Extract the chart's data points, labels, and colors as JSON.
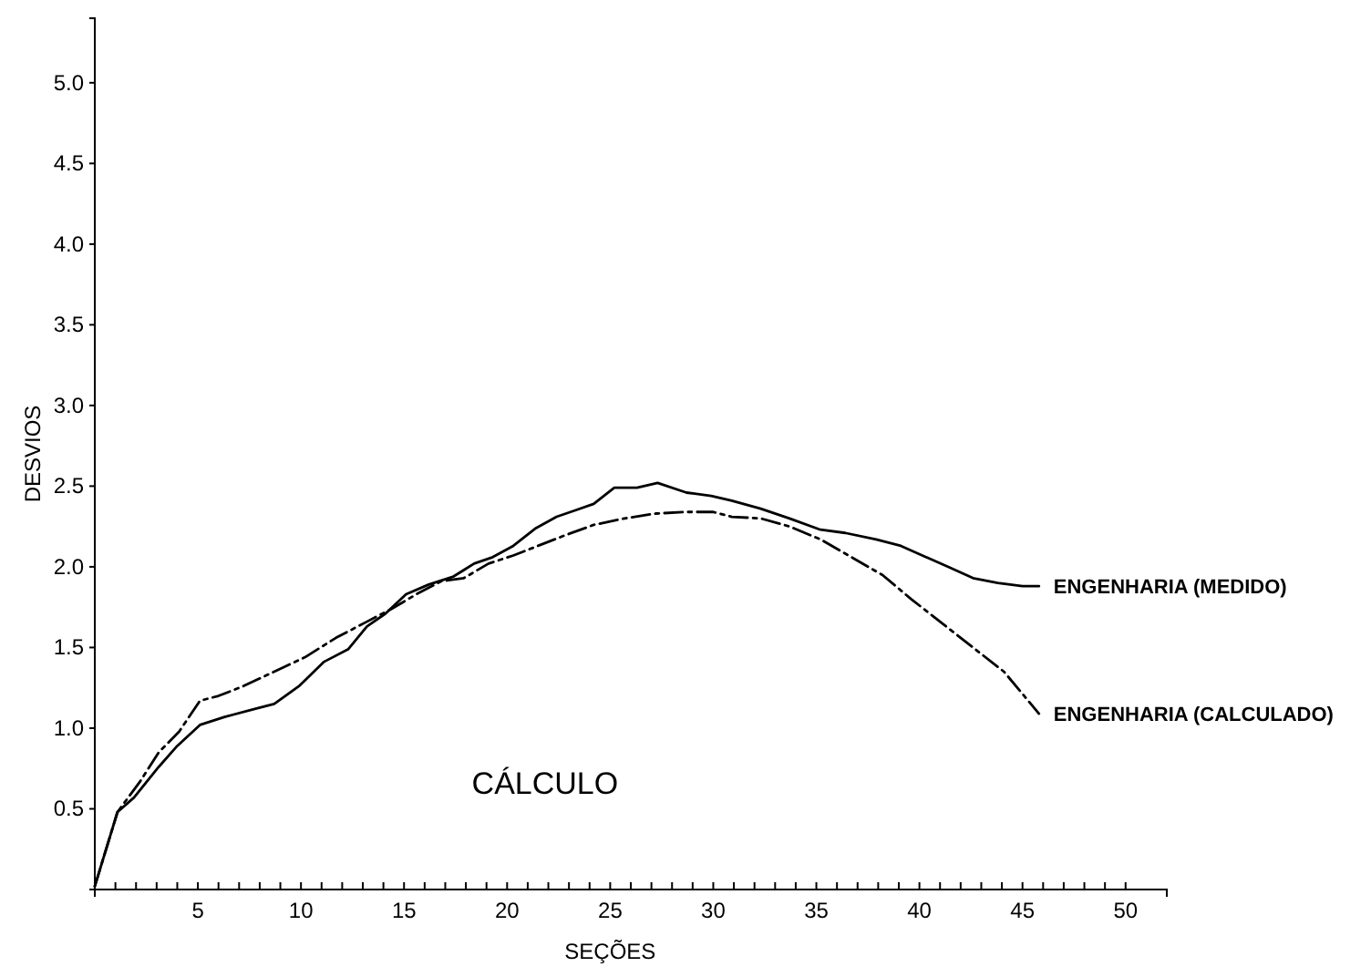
{
  "chart_data": {
    "type": "line",
    "xlabel": "SEÇÕES",
    "ylabel": "DESVIOS",
    "annotations": [
      "CÁLCULO"
    ],
    "xlim": [
      0,
      52
    ],
    "ylim": [
      0,
      5.4
    ],
    "xticks": [
      {
        "value": 1,
        "label": null
      },
      {
        "value": 2,
        "label": null
      },
      {
        "value": 3,
        "label": null
      },
      {
        "value": 4,
        "label": null
      },
      5,
      {
        "value": 6,
        "label": null
      },
      {
        "value": 7,
        "label": null
      },
      {
        "value": 8,
        "label": null
      },
      {
        "value": 9,
        "label": null
      },
      10,
      {
        "value": 11,
        "label": null
      },
      {
        "value": 12,
        "label": null
      },
      {
        "value": 13,
        "label": null
      },
      {
        "value": 14,
        "label": null
      },
      15,
      {
        "value": 16,
        "label": null
      },
      {
        "value": 17,
        "label": null
      },
      {
        "value": 18,
        "label": null
      },
      {
        "value": 19,
        "label": null
      },
      20,
      {
        "value": 21,
        "label": null
      },
      {
        "value": 22,
        "label": null
      },
      {
        "value": 23,
        "label": null
      },
      {
        "value": 24,
        "label": null
      },
      25,
      {
        "value": 26,
        "label": null
      },
      {
        "value": 27,
        "label": null
      },
      {
        "value": 28,
        "label": null
      },
      {
        "value": 29,
        "label": null
      },
      30,
      {
        "value": 31,
        "label": null
      },
      {
        "value": 32,
        "label": null
      },
      {
        "value": 33,
        "label": null
      },
      {
        "value": 34,
        "label": null
      },
      35,
      {
        "value": 36,
        "label": null
      },
      {
        "value": 37,
        "label": null
      },
      {
        "value": 38,
        "label": null
      },
      {
        "value": 39,
        "label": null
      },
      40,
      {
        "value": 41,
        "label": null
      },
      {
        "value": 42,
        "label": null
      },
      {
        "value": 43,
        "label": null
      },
      {
        "value": 44,
        "label": null
      },
      45,
      {
        "value": 46,
        "label": null
      },
      {
        "value": 47,
        "label": null
      },
      {
        "value": 48,
        "label": null
      },
      {
        "value": 49,
        "label": null
      },
      50
    ],
    "yticks": [
      0.5,
      {
        "value": 1,
        "label": "1.0"
      },
      1.5,
      {
        "value": 2,
        "label": "2.0"
      },
      2.5,
      {
        "value": 3,
        "label": "3.0"
      },
      3.5,
      {
        "value": 4,
        "label": "4.0"
      },
      4.5,
      {
        "value": 5,
        "label": "5.0"
      }
    ],
    "grid": false,
    "series": [
      {
        "name": "ENGENHARIA (MEDIDO)",
        "color": "#000000",
        "line_style": "solid",
        "x": [
          0,
          1.1,
          1.9,
          3.1,
          4.0,
          5.1,
          6.3,
          7.8,
          8.7,
          9.9,
          11.1,
          12.3,
          13.2,
          14.1,
          15.1,
          16.2,
          17.4,
          18.4,
          19.3,
          20.3,
          21.4,
          22.4,
          23.3,
          24.2,
          25.2,
          26.3,
          27.3,
          28.7,
          29.9,
          30.9,
          32.3,
          33.7,
          35.2,
          36.4,
          37.9,
          39.1,
          40.5,
          41.4,
          42.6,
          43.8,
          45.0,
          45.8
        ],
        "values": [
          0.02,
          0.48,
          0.57,
          0.76,
          0.89,
          1.02,
          1.07,
          1.12,
          1.15,
          1.26,
          1.41,
          1.49,
          1.63,
          1.71,
          1.83,
          1.89,
          1.94,
          2.02,
          2.06,
          2.13,
          2.24,
          2.31,
          2.35,
          2.39,
          2.49,
          2.49,
          2.52,
          2.46,
          2.44,
          2.41,
          2.36,
          2.3,
          2.23,
          2.21,
          2.17,
          2.13,
          2.05,
          2.0,
          1.93,
          1.9,
          1.88,
          1.88
        ]
      },
      {
        "name": "ENGENHARIA (CALCULADO)",
        "color": "#000000",
        "line_style": "dashed",
        "x": [
          0,
          1.1,
          2.2,
          3.1,
          4.1,
          5.1,
          6.0,
          7.2,
          8.7,
          10.2,
          11.7,
          13.2,
          14.4,
          15.6,
          16.8,
          17.9,
          19.1,
          20.3,
          21.5,
          22.7,
          24.2,
          25.7,
          27.2,
          28.7,
          30.0,
          30.9,
          32.3,
          33.7,
          35.2,
          36.7,
          38.2,
          39.6,
          41.1,
          42.6,
          44.1,
          45.8
        ],
        "values": [
          0.02,
          0.48,
          0.67,
          0.85,
          0.98,
          1.17,
          1.2,
          1.26,
          1.35,
          1.44,
          1.56,
          1.66,
          1.74,
          1.83,
          1.91,
          1.93,
          2.02,
          2.07,
          2.13,
          2.19,
          2.26,
          2.3,
          2.33,
          2.34,
          2.34,
          2.31,
          2.3,
          2.25,
          2.17,
          2.06,
          1.95,
          1.8,
          1.65,
          1.5,
          1.35,
          1.09
        ]
      }
    ]
  }
}
